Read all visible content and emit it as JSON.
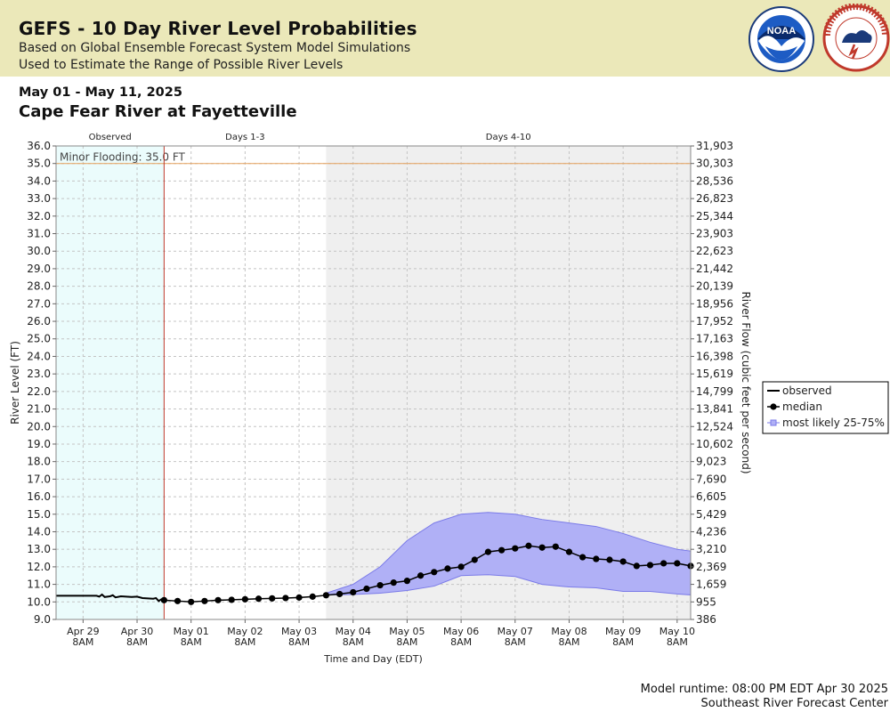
{
  "header": {
    "title": "GEFS - 10 Day River Level Probabilities",
    "subtitle1": "Based on Global Ensemble Forecast System Model Simulations",
    "subtitle2": "Used to Estimate the Range of Possible River Levels"
  },
  "logos": {
    "noaa_text": "NOAA",
    "nws_text": "NATIONAL WEATHER SERVICE"
  },
  "date_range": "May 01 - May 11, 2025",
  "station": "Cape Fear River at Fayetteville",
  "footer": {
    "runtime": "Model runtime: 08:00 PM EDT Apr 30 2025",
    "center": "Southeast River Forecast Center"
  },
  "colors": {
    "banner": "#ebe8b9",
    "observed_bg": "#ebfcfc",
    "days13_bg": "#ffffff",
    "days410_bg": "#efefef",
    "band_fill": "#b0b0f6",
    "band_stroke": "#7a7ae8",
    "flood_line": "#e6a05a",
    "now_line": "#c0392b"
  },
  "chart_data": {
    "type": "line",
    "xlabel": "Time and Day (EDT)",
    "ylabel": "River Level (FT)",
    "ylabel_right": "River Flow (cubic feet per second)",
    "ylim": [
      9.0,
      36.0
    ],
    "y_ticks": [
      "36.0",
      "35.0",
      "34.0",
      "33.0",
      "32.0",
      "31.0",
      "30.0",
      "29.0",
      "28.0",
      "27.0",
      "26.0",
      "25.0",
      "24.0",
      "23.0",
      "22.0",
      "21.0",
      "20.0",
      "19.0",
      "18.0",
      "17.0",
      "16.0",
      "15.0",
      "14.0",
      "13.0",
      "12.0",
      "11.0",
      "10.0",
      "9.0"
    ],
    "right_ticks": [
      "31,903",
      "30,303",
      "28,536",
      "26,823",
      "25,344",
      "23,903",
      "22,623",
      "21,442",
      "20,139",
      "18,956",
      "17,952",
      "17,163",
      "16,398",
      "15,619",
      "14,799",
      "13,841",
      "12,524",
      "10,602",
      "9,023",
      "7,690",
      "6,605",
      "5,429",
      "4,236",
      "3,210",
      "2,369",
      "1,659",
      "955",
      "386"
    ],
    "xlim_days_from_apr29_8am": [
      -0.5,
      11.25
    ],
    "x_ticks": [
      {
        "day": "Apr 29",
        "time": "8AM",
        "offset": 0
      },
      {
        "day": "Apr 30",
        "time": "8AM",
        "offset": 1
      },
      {
        "day": "May 01",
        "time": "8AM",
        "offset": 2
      },
      {
        "day": "May 02",
        "time": "8AM",
        "offset": 3
      },
      {
        "day": "May 03",
        "time": "8AM",
        "offset": 4
      },
      {
        "day": "May 04",
        "time": "8AM",
        "offset": 5
      },
      {
        "day": "May 05",
        "time": "8AM",
        "offset": 6
      },
      {
        "day": "May 06",
        "time": "8AM",
        "offset": 7
      },
      {
        "day": "May 07",
        "time": "8AM",
        "offset": 8
      },
      {
        "day": "May 08",
        "time": "8AM",
        "offset": 9
      },
      {
        "day": "May 09",
        "time": "8AM",
        "offset": 10
      },
      {
        "day": "May 10",
        "time": "8AM",
        "offset": 11
      }
    ],
    "periods": [
      {
        "label": "Observed",
        "start": -0.5,
        "end": 1.5
      },
      {
        "label": "Days 1-3",
        "start": 1.5,
        "end": 4.5
      },
      {
        "label": "Days 4-10",
        "start": 4.5,
        "end": 11.25
      }
    ],
    "now_marker": 1.5,
    "flood_stage": {
      "label": "Minor Flooding: 35.0 FT",
      "value": 35.0
    },
    "legend": {
      "position": "right",
      "items": [
        "observed",
        "median",
        "most likely 25-75%"
      ]
    },
    "series": [
      {
        "name": "observed",
        "x": [
          -0.5,
          -0.25,
          0,
          0.25,
          0.3,
          0.35,
          0.4,
          0.5,
          0.55,
          0.6,
          0.7,
          0.8,
          0.9,
          1.0,
          1.1,
          1.2,
          1.3,
          1.35,
          1.4,
          1.45,
          1.5
        ],
        "y": [
          10.35,
          10.35,
          10.35,
          10.35,
          10.3,
          10.42,
          10.28,
          10.32,
          10.38,
          10.26,
          10.32,
          10.3,
          10.28,
          10.3,
          10.22,
          10.2,
          10.18,
          10.22,
          10.05,
          10.15,
          10.1
        ]
      },
      {
        "name": "median",
        "x": [
          1.5,
          1.75,
          2.0,
          2.25,
          2.5,
          2.75,
          3.0,
          3.25,
          3.5,
          3.75,
          4.0,
          4.25,
          4.5,
          4.75,
          5.0,
          5.25,
          5.5,
          5.75,
          6.0,
          6.25,
          6.5,
          6.75,
          7.0,
          7.25,
          7.5,
          7.75,
          8.0,
          8.25,
          8.5,
          8.75,
          9.0,
          9.25,
          9.5,
          9.75,
          10.0,
          10.25,
          10.5,
          10.75,
          11.0,
          11.25
        ],
        "y": [
          10.1,
          10.05,
          10.0,
          10.05,
          10.1,
          10.12,
          10.15,
          10.18,
          10.2,
          10.22,
          10.25,
          10.3,
          10.38,
          10.45,
          10.55,
          10.75,
          10.95,
          11.1,
          11.2,
          11.5,
          11.7,
          11.9,
          12.0,
          12.4,
          12.85,
          12.95,
          13.05,
          13.2,
          13.1,
          13.15,
          12.85,
          12.55,
          12.45,
          12.4,
          12.3,
          12.05,
          12.1,
          12.2,
          12.2,
          12.05
        ]
      },
      {
        "name": "most likely 25-75% upper",
        "x": [
          4.5,
          5.0,
          5.5,
          6.0,
          6.5,
          7.0,
          7.5,
          8.0,
          8.5,
          9.0,
          9.5,
          10.0,
          10.5,
          11.0,
          11.25
        ],
        "y": [
          10.5,
          11.0,
          12.0,
          13.5,
          14.5,
          15.0,
          15.1,
          15.0,
          14.7,
          14.5,
          14.3,
          13.9,
          13.4,
          13.0,
          12.9
        ]
      },
      {
        "name": "most likely 25-75% lower",
        "x": [
          4.5,
          5.0,
          5.5,
          6.0,
          6.5,
          7.0,
          7.5,
          8.0,
          8.5,
          9.0,
          9.5,
          10.0,
          10.5,
          11.0,
          11.25
        ],
        "y": [
          10.4,
          10.42,
          10.5,
          10.65,
          10.9,
          11.5,
          11.55,
          11.45,
          11.0,
          10.85,
          10.8,
          10.6,
          10.6,
          10.45,
          10.4
        ]
      }
    ]
  }
}
